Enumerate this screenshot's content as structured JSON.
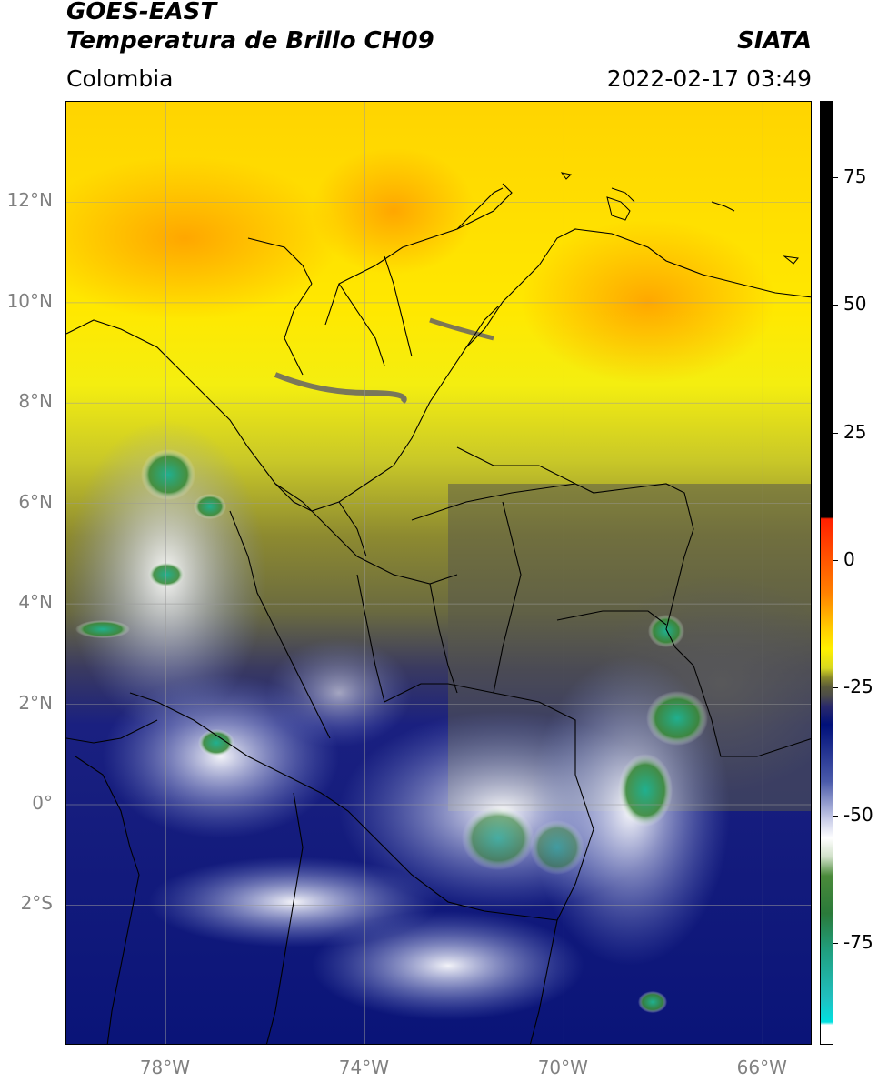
{
  "header": {
    "satellite": "GOES-EAST",
    "product": "Temperatura de Brillo CH09",
    "brand": "SIATA",
    "region": "Colombia",
    "timestamp": "2022-02-17 03:49"
  },
  "map": {
    "lat_range": [
      -4.8,
      14.0
    ],
    "lon_range": [
      -80.0,
      -65.0
    ],
    "lat_labels": [
      {
        "value": 12,
        "text": "12°N"
      },
      {
        "value": 10,
        "text": "10°N"
      },
      {
        "value": 8,
        "text": "8°N"
      },
      {
        "value": 6,
        "text": "6°N"
      },
      {
        "value": 4,
        "text": "4°N"
      },
      {
        "value": 2,
        "text": "2°N"
      },
      {
        "value": 0,
        "text": "0°"
      },
      {
        "value": -2,
        "text": "2°S"
      }
    ],
    "lon_labels": [
      {
        "value": -78,
        "text": "78°W"
      },
      {
        "value": -74,
        "text": "74°W"
      },
      {
        "value": -70,
        "text": "70°W"
      },
      {
        "value": -66,
        "text": "66°W"
      }
    ]
  },
  "colorbar": {
    "range": [
      -95,
      90
    ],
    "ticks": [
      {
        "value": 75,
        "text": "75"
      },
      {
        "value": 50,
        "text": "50"
      },
      {
        "value": 25,
        "text": "25"
      },
      {
        "value": 0,
        "text": "0"
      },
      {
        "value": -25,
        "text": "-25"
      },
      {
        "value": -50,
        "text": "-50"
      },
      {
        "value": -75,
        "text": "-75"
      }
    ],
    "colors": {
      "black": "#000000",
      "red": "#ff2000",
      "orange": "#ffa000",
      "yellow": "#fff000",
      "olive": "#8a8a2a",
      "gray": "#4a4a4a",
      "navy": "#00107a",
      "white": "#ffffff",
      "green": "#3a8a2a",
      "teal": "#20c0a0",
      "cyan": "#00e0e0"
    }
  }
}
